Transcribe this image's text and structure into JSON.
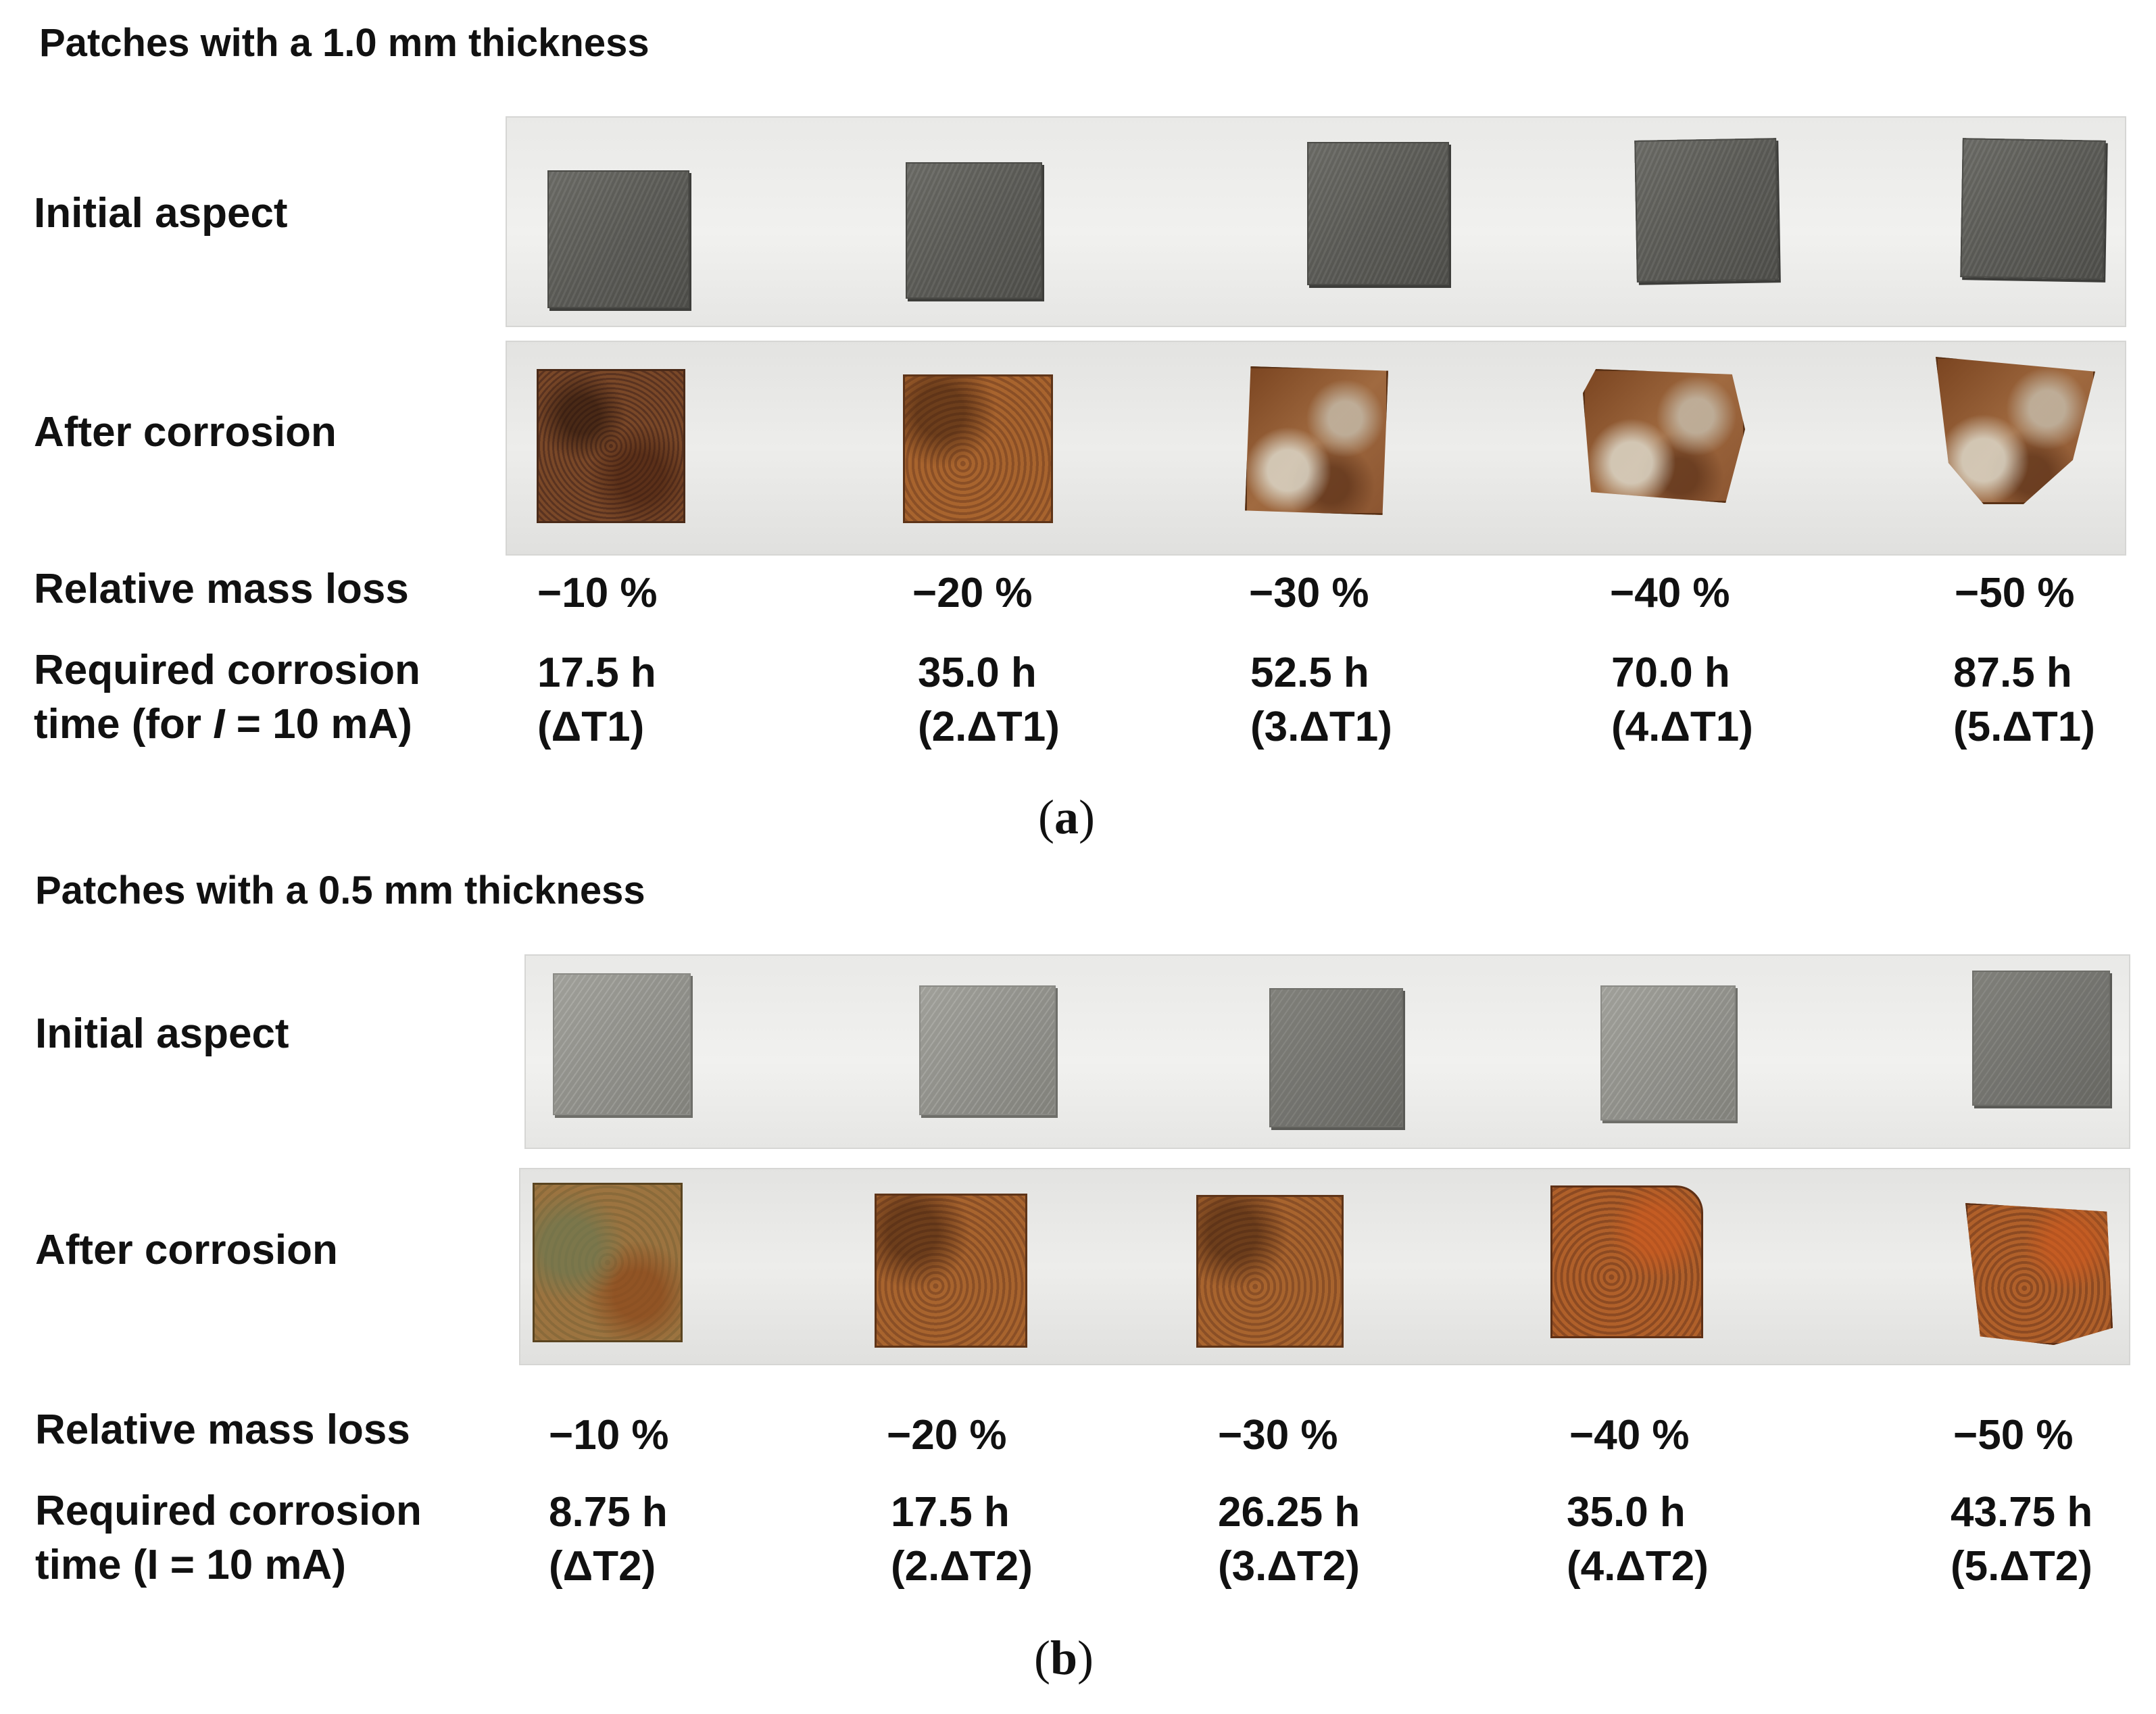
{
  "figure_a": {
    "heading": "Patches with a 1.0 mm thickness",
    "row_labels": {
      "initial": "Initial aspect",
      "after": "After corrosion",
      "mass_loss": "Relative mass loss",
      "time_line1": "Required corrosion",
      "time_line2_pre": "time (for ",
      "time_line2_var": "I",
      "time_line2_post": " = 10 mA)"
    },
    "columns": [
      {
        "mass_loss": "−10 %",
        "time": "17.5 h",
        "factor": "(ΔT1)"
      },
      {
        "mass_loss": "−20 %",
        "time": "35.0 h",
        "factor": "(2.ΔT1)"
      },
      {
        "mass_loss": "−30 %",
        "time": "52.5 h",
        "factor": "(3.ΔT1)"
      },
      {
        "mass_loss": "−40 %",
        "time": "70.0 h",
        "factor": "(4.ΔT1)"
      },
      {
        "mass_loss": "−50 %",
        "time": "87.5 h",
        "factor": "(5.ΔT1)"
      }
    ],
    "caption_open": "(",
    "caption_letter": "a",
    "caption_close": ")"
  },
  "figure_b": {
    "heading": "Patches with a 0.5 mm thickness",
    "row_labels": {
      "initial": "Initial aspect",
      "after": "After corrosion",
      "mass_loss": "Relative mass loss",
      "time_line1": "Required corrosion",
      "time_line2": "time (I = 10 mA)"
    },
    "columns": [
      {
        "mass_loss": "−10 %",
        "time": "8.75 h",
        "factor": "(ΔT2)"
      },
      {
        "mass_loss": "−20 %",
        "time": "17.5 h",
        "factor": "(2.ΔT2)"
      },
      {
        "mass_loss": "−30 %",
        "time": "26.25 h",
        "factor": "(3.ΔT2)"
      },
      {
        "mass_loss": "−40 %",
        "time": "35.0 h",
        "factor": "(4.ΔT2)"
      },
      {
        "mass_loss": "−50 %",
        "time": "43.75 h",
        "factor": "(5.ΔT2)"
      }
    ],
    "caption_open": "(",
    "caption_letter": "b",
    "caption_close": ")"
  }
}
